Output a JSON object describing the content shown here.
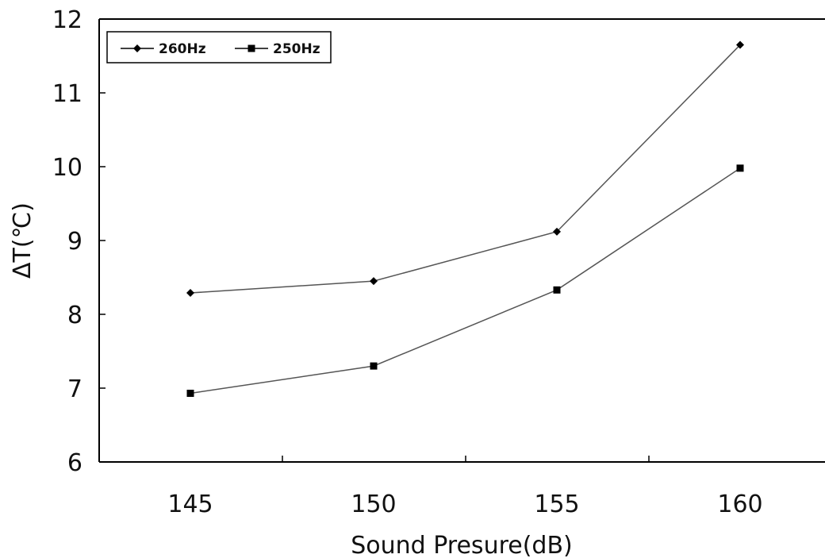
{
  "chart_data": {
    "type": "line",
    "xlabel": "Sound Presure(dB)",
    "ylabel": "ΔT(℃)",
    "categories": [
      "145",
      "150",
      "155",
      "160"
    ],
    "x": [
      145,
      150,
      155,
      160
    ],
    "ylim": [
      6,
      12
    ],
    "yticks": [
      "6",
      "7",
      "8",
      "9",
      "10",
      "11",
      "12"
    ],
    "grid": false,
    "legend_position": "top-left",
    "series": [
      {
        "name": "260Hz",
        "marker": "diamond",
        "color": "#000000",
        "values": [
          8.29,
          8.45,
          9.12,
          11.65
        ]
      },
      {
        "name": "250Hz",
        "marker": "square",
        "color": "#000000",
        "values": [
          6.93,
          7.3,
          8.33,
          9.98
        ]
      }
    ]
  }
}
